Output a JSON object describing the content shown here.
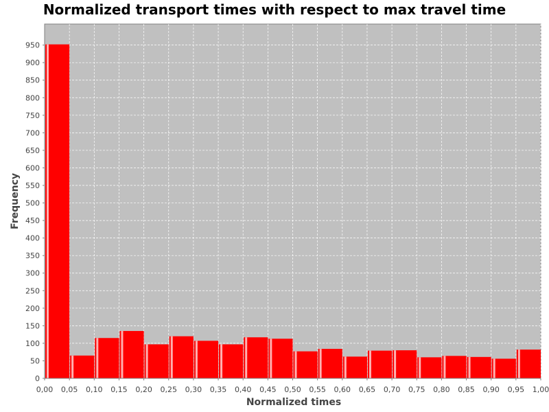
{
  "chart_data": {
    "type": "bar",
    "title": "Normalized transport times with respect to max travel time",
    "xlabel": "Normalized times",
    "ylabel": "Frequency",
    "xlim": [
      0,
      1
    ],
    "ylim": [
      0,
      1000
    ],
    "bin_width": 0.05,
    "bins": [
      0.0,
      0.05,
      0.1,
      0.15,
      0.2,
      0.25,
      0.3,
      0.35,
      0.4,
      0.45,
      0.5,
      0.55,
      0.6,
      0.65,
      0.7,
      0.75,
      0.8,
      0.85,
      0.9,
      0.95
    ],
    "values": [
      952,
      65,
      115,
      135,
      97,
      120,
      107,
      97,
      117,
      113,
      77,
      84,
      62,
      79,
      80,
      60,
      64,
      61,
      56,
      82
    ],
    "xticks": [
      "0,00",
      "0,05",
      "0,10",
      "0,15",
      "0,20",
      "0,25",
      "0,30",
      "0,35",
      "0,40",
      "0,45",
      "0,50",
      "0,55",
      "0,60",
      "0,65",
      "0,70",
      "0,75",
      "0,80",
      "0,85",
      "0,90",
      "0,95",
      "1,00"
    ],
    "yticks": [
      "0",
      "50",
      "100",
      "150",
      "200",
      "250",
      "300",
      "350",
      "400",
      "450",
      "500",
      "550",
      "600",
      "650",
      "700",
      "750",
      "800",
      "850",
      "900",
      "950"
    ],
    "grid": true,
    "colors": {
      "bar": "#ff0000",
      "bar_highlight": "#ffb0b0",
      "plot_background": "#c0c0c0",
      "grid": "#ffffff"
    }
  }
}
